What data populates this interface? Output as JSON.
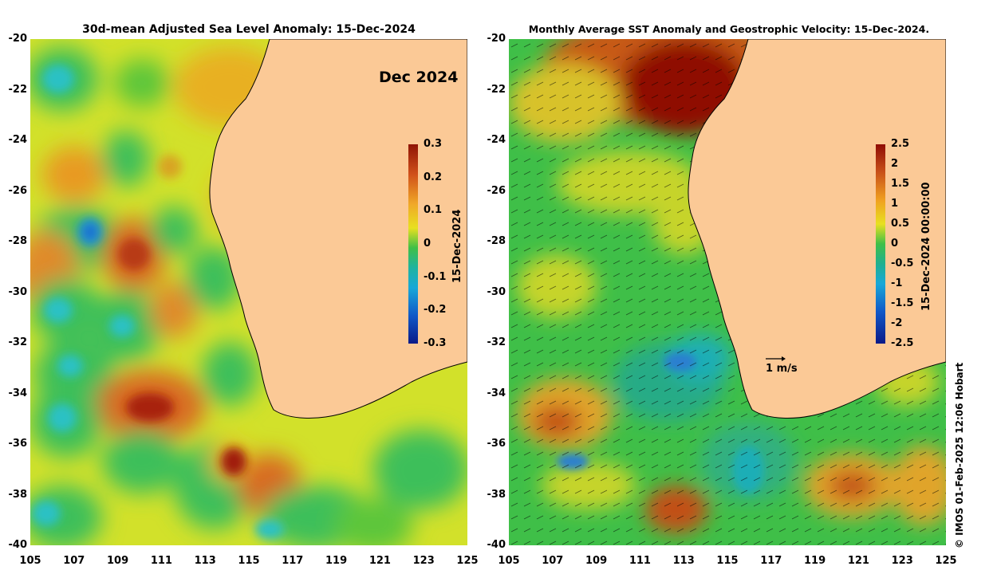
{
  "left_panel": {
    "title": "30d-mean Adjusted Sea Level Anomaly: 15-Dec-2024",
    "month_label": "Dec 2024",
    "colorbar": {
      "title": "15-Dec-2024",
      "ticks": [
        "0.3",
        "0.2",
        "0.1",
        "0",
        "-0.1",
        "-0.2",
        "-0.3"
      ],
      "range": [
        -0.3,
        0.3
      ]
    }
  },
  "right_panel": {
    "title": "Monthly Average SST Anomaly  and Geostrophic Velocity: 15-Dec-2024.",
    "colorbar": {
      "title": "15-Dec-2024 00:00:00",
      "ticks": [
        "2.5",
        "2",
        "1.5",
        "1",
        "0.5",
        "0",
        "-0.5",
        "-1",
        "-1.5",
        "-2",
        "-2.5"
      ],
      "range": [
        -2.5,
        2.5
      ]
    },
    "velocity_scale_label": "1 m/s"
  },
  "axes": {
    "lat_ticks": [
      "-20",
      "-22",
      "-24",
      "-26",
      "-28",
      "-30",
      "-32",
      "-34",
      "-36",
      "-38",
      "-40"
    ],
    "lon_ticks": [
      "105",
      "107",
      "109",
      "111",
      "113",
      "115",
      "117",
      "119",
      "121",
      "123",
      "125"
    ],
    "lat_range": [
      -40,
      -20
    ],
    "lon_range": [
      105,
      125
    ]
  },
  "credit": "© IMOS 01-Feb-2025 12:06 Hobart",
  "colors": {
    "land": "#fbc996",
    "coast": "#000000",
    "sla_high": "#b22a10",
    "sla_low": "#00a0d8",
    "sst_high": "#8f0c05",
    "sst_low": "#1fb3a0"
  }
}
